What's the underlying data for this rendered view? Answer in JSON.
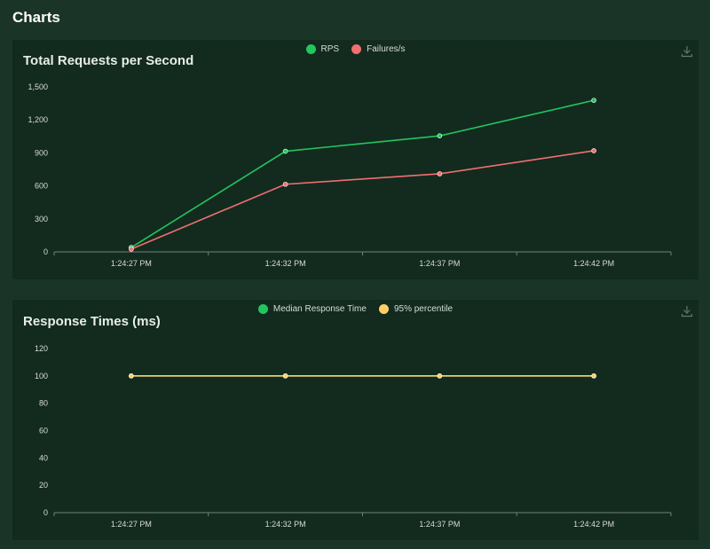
{
  "page": {
    "heading": "Charts"
  },
  "colors": {
    "rps": "#22c55e",
    "failures": "#f07070",
    "median": "#22c55e",
    "p95": "#ffcf66",
    "background": "#1a3528",
    "card": "#132a1f"
  },
  "chart_data": [
    {
      "type": "line",
      "title": "Total Requests per Second",
      "x": [
        "1:24:27 PM",
        "1:24:32 PM",
        "1:24:37 PM",
        "1:24:42 PM"
      ],
      "series": [
        {
          "name": "RPS",
          "values": [
            40,
            915,
            1055,
            1378
          ]
        },
        {
          "name": "Failures/s",
          "values": [
            25,
            615,
            710,
            920
          ]
        }
      ],
      "ylim": [
        0,
        1500
      ],
      "yticks": [
        "0",
        "300",
        "600",
        "900",
        "1,200",
        "1,500"
      ],
      "legend": "top-center",
      "grid": false
    },
    {
      "type": "line",
      "title": "Response Times (ms)",
      "x": [
        "1:24:27 PM",
        "1:24:32 PM",
        "1:24:37 PM",
        "1:24:42 PM"
      ],
      "series": [
        {
          "name": "Median Response Time",
          "values": [
            100,
            100,
            100,
            100
          ]
        },
        {
          "name": "95% percentile",
          "values": [
            100,
            100,
            100,
            100
          ]
        }
      ],
      "ylim": [
        0,
        120
      ],
      "yticks": [
        "0",
        "20",
        "40",
        "60",
        "80",
        "100",
        "120"
      ],
      "legend": "top-center",
      "grid": false
    }
  ]
}
